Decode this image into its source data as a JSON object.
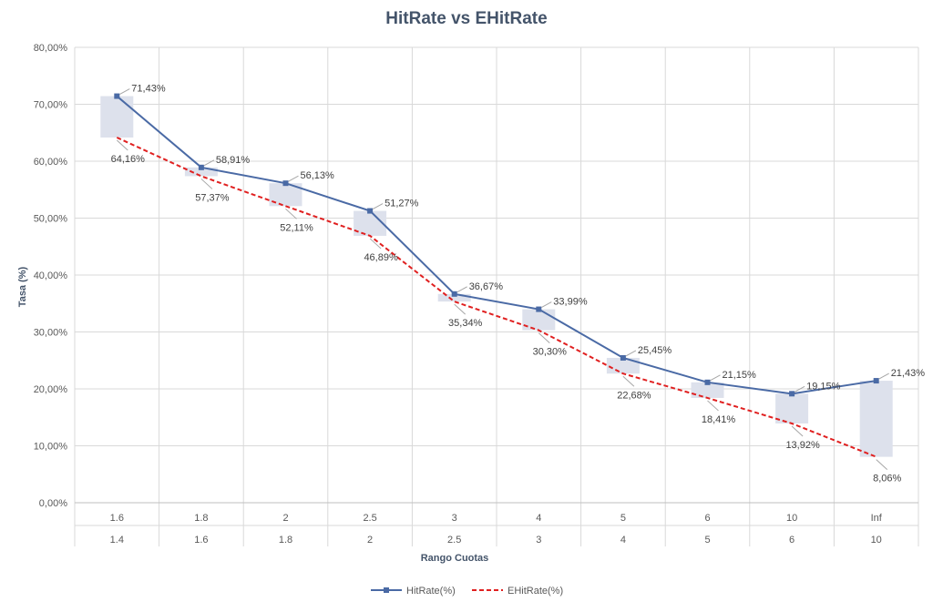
{
  "chart_data": {
    "type": "line",
    "title": "HitRate vs EHitRate",
    "ylabel": "Tasa (%)",
    "xlabel": "Rango Cuotas",
    "ylim": [
      0,
      80
    ],
    "yticks": [
      "0,00%",
      "10,00%",
      "20,00%",
      "30,00%",
      "40,00%",
      "50,00%",
      "60,00%",
      "70,00%",
      "80,00%"
    ],
    "categories_upper": [
      "1.6",
      "1.8",
      "2",
      "2.5",
      "3",
      "4",
      "5",
      "6",
      "10",
      "Inf"
    ],
    "categories_lower": [
      "1.4",
      "1.6",
      "1.8",
      "2",
      "2.5",
      "3",
      "4",
      "5",
      "6",
      "10"
    ],
    "grid": true,
    "legend_position": "bottom",
    "series": [
      {
        "name": "HitRate(%)",
        "color": "#4a6aa5",
        "style": "solid-with-square-markers",
        "values": [
          71.43,
          58.91,
          56.13,
          51.27,
          36.67,
          33.99,
          25.45,
          21.15,
          19.15,
          21.43
        ],
        "labels": [
          "71,43%",
          "58,91%",
          "56,13%",
          "51,27%",
          "36,67%",
          "33,99%",
          "25,45%",
          "21,15%",
          "19,15%",
          "21,43%"
        ]
      },
      {
        "name": "EHitRate(%)",
        "color": "#e02020",
        "style": "dashed",
        "values": [
          64.16,
          57.37,
          52.11,
          46.89,
          35.34,
          30.3,
          22.68,
          18.41,
          13.92,
          8.06
        ],
        "labels": [
          "64,16%",
          "57,37%",
          "52,11%",
          "46,89%",
          "35,34%",
          "30,30%",
          "22,68%",
          "18,41%",
          "13,92%",
          "8,06%"
        ]
      }
    ],
    "difference_bars": {
      "color": "#dde1ec"
    }
  }
}
